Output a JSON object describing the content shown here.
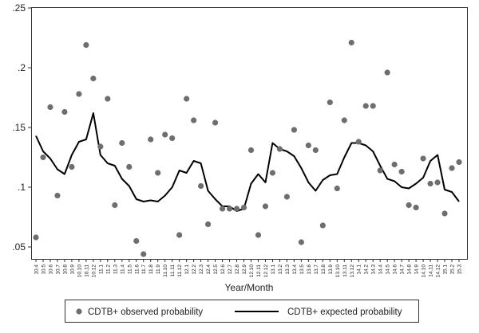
{
  "chart_data": {
    "type": "line",
    "title": "",
    "xlabel": "Year/Month",
    "ylabel": "",
    "ylim": [
      0.04,
      0.25
    ],
    "yticks": [
      0.05,
      0.1,
      0.15,
      0.2,
      0.25
    ],
    "ytick_labels": [
      ".05",
      ".1",
      ".15",
      ".2",
      ".25"
    ],
    "grid": "none",
    "legend_position": "bottom",
    "categories": [
      "10.4",
      "10.5",
      "10.6",
      "10.7",
      "10.8",
      "10.9",
      "10.10",
      "10.11",
      "10.12",
      "11.1",
      "11.2",
      "11.3",
      "11.4",
      "11.5",
      "11.6",
      "11.7",
      "11.8",
      "11.9",
      "11.10",
      "11.11",
      "11.12",
      "12.1",
      "12.2",
      "12.3",
      "12.4",
      "12.5",
      "12.6",
      "12.7",
      "12.8",
      "12.9",
      "12.10",
      "12.11",
      "12.12",
      "13.1",
      "13.2",
      "13.3",
      "13.4",
      "13.5",
      "13.6",
      "13.7",
      "13.8",
      "13.9",
      "13.10",
      "13.11",
      "13.12",
      "14.1",
      "14.2",
      "14.3",
      "14.4",
      "14.5",
      "14.6",
      "14.7",
      "14.8",
      "14.9",
      "14.10",
      "14.11",
      "14.12",
      "15.1",
      "15.2",
      "15.3"
    ],
    "series": [
      {
        "name": "CDTB+ observed probability",
        "style": "markers",
        "color": "#6e6e6e",
        "values": [
          0.058,
          0.125,
          0.167,
          0.093,
          0.163,
          0.117,
          0.178,
          0.219,
          0.191,
          0.134,
          0.174,
          0.085,
          0.137,
          0.117,
          0.055,
          0.044,
          0.14,
          0.112,
          0.144,
          0.141,
          0.06,
          0.174,
          0.156,
          0.101,
          0.069,
          0.154,
          0.082,
          0.082,
          0.082,
          0.083,
          0.131,
          0.06,
          0.084,
          0.112,
          0.132,
          0.092,
          0.148,
          0.054,
          0.135,
          0.131,
          0.068,
          0.171,
          0.099,
          0.156,
          0.221,
          0.138,
          0.168,
          0.168,
          0.114,
          0.196,
          0.119,
          0.113,
          0.085,
          0.083,
          0.124,
          0.103,
          0.104,
          0.078,
          0.116,
          0.121
        ]
      },
      {
        "name": "CDTB+ expected probability",
        "style": "line",
        "color": "#000000",
        "values": [
          0.143,
          0.13,
          0.124,
          0.115,
          0.111,
          0.127,
          0.138,
          0.14,
          0.162,
          0.127,
          0.12,
          0.118,
          0.107,
          0.101,
          0.09,
          0.088,
          0.089,
          0.088,
          0.093,
          0.1,
          0.114,
          0.112,
          0.122,
          0.12,
          0.097,
          0.09,
          0.084,
          0.084,
          0.08,
          0.082,
          0.103,
          0.111,
          0.104,
          0.137,
          0.132,
          0.13,
          0.126,
          0.116,
          0.104,
          0.097,
          0.106,
          0.11,
          0.111,
          0.125,
          0.137,
          0.137,
          0.135,
          0.13,
          0.118,
          0.107,
          0.105,
          0.1,
          0.099,
          0.103,
          0.108,
          0.122,
          0.127,
          0.098,
          0.096,
          0.088
        ]
      }
    ]
  }
}
